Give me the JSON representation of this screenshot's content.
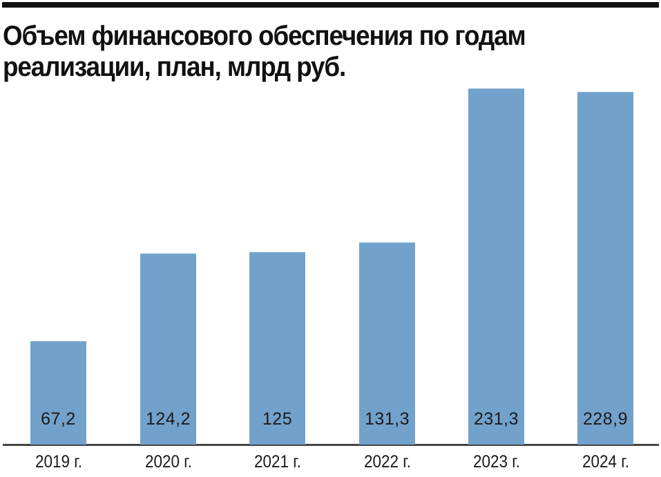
{
  "title": "Объем финансового обеспечения по годам реализации, план, млрд руб.",
  "colors": {
    "bar": "#72a2cb",
    "text": "#111111",
    "rule": "#111111",
    "axis": "#444444"
  },
  "bars": [
    {
      "category": "2019 г.",
      "value_label": "67,2"
    },
    {
      "category": "2020 г.",
      "value_label": "124,2"
    },
    {
      "category": "2021 г.",
      "value_label": "125"
    },
    {
      "category": "2022 г.",
      "value_label": "131,3"
    },
    {
      "category": "2023 г.",
      "value_label": "231,3"
    },
    {
      "category": "2024 г.",
      "value_label": "228,9"
    }
  ],
  "chart_data": {
    "type": "bar",
    "title": "Объем финансового обеспечения по годам реализации, план, млрд руб.",
    "categories": [
      "2019 г.",
      "2020 г.",
      "2021 г.",
      "2022 г.",
      "2023 г.",
      "2024 г."
    ],
    "values": [
      67.2,
      124.2,
      125,
      131.3,
      231.3,
      228.9
    ],
    "xlabel": "",
    "ylabel": "млрд руб.",
    "ylim": [
      0,
      231.3
    ],
    "grid": false,
    "legend": null,
    "data_labels": "inside-bottom"
  }
}
